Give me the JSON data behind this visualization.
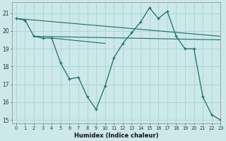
{
  "xlabel": "Humidex (Indice chaleur)",
  "background_color": "#cce8e8",
  "grid_color": "#aad4d4",
  "line_color": "#1a6e6a",
  "xlim": [
    -0.5,
    23
  ],
  "ylim": [
    14.8,
    21.6
  ],
  "yticks": [
    15,
    16,
    17,
    18,
    19,
    20,
    21
  ],
  "xticks": [
    0,
    1,
    2,
    3,
    4,
    5,
    6,
    7,
    8,
    9,
    10,
    11,
    12,
    13,
    14,
    15,
    16,
    17,
    18,
    19,
    20,
    21,
    22,
    23
  ],
  "series": [
    {
      "x": [
        0,
        1,
        2,
        3,
        4,
        5,
        6,
        7,
        8,
        9,
        10,
        11,
        12,
        13,
        14,
        15,
        16,
        17,
        18,
        19,
        20,
        21,
        22,
        23
      ],
      "y": [
        20.7,
        20.6,
        19.7,
        19.6,
        19.6,
        18.2,
        17.3,
        17.4,
        16.3,
        15.6,
        16.9,
        18.5,
        19.3,
        19.9,
        20.5,
        21.3,
        20.7,
        21.1,
        19.7,
        19.0,
        19.0,
        16.3,
        15.3,
        15.0
      ],
      "marker": true
    },
    {
      "x": [
        0,
        23
      ],
      "y": [
        20.7,
        19.7
      ],
      "marker": false
    },
    {
      "x": [
        2,
        23
      ],
      "y": [
        19.7,
        19.5
      ],
      "marker": false
    },
    {
      "x": [
        4,
        10
      ],
      "y": [
        19.6,
        19.3
      ],
      "marker": false
    }
  ]
}
